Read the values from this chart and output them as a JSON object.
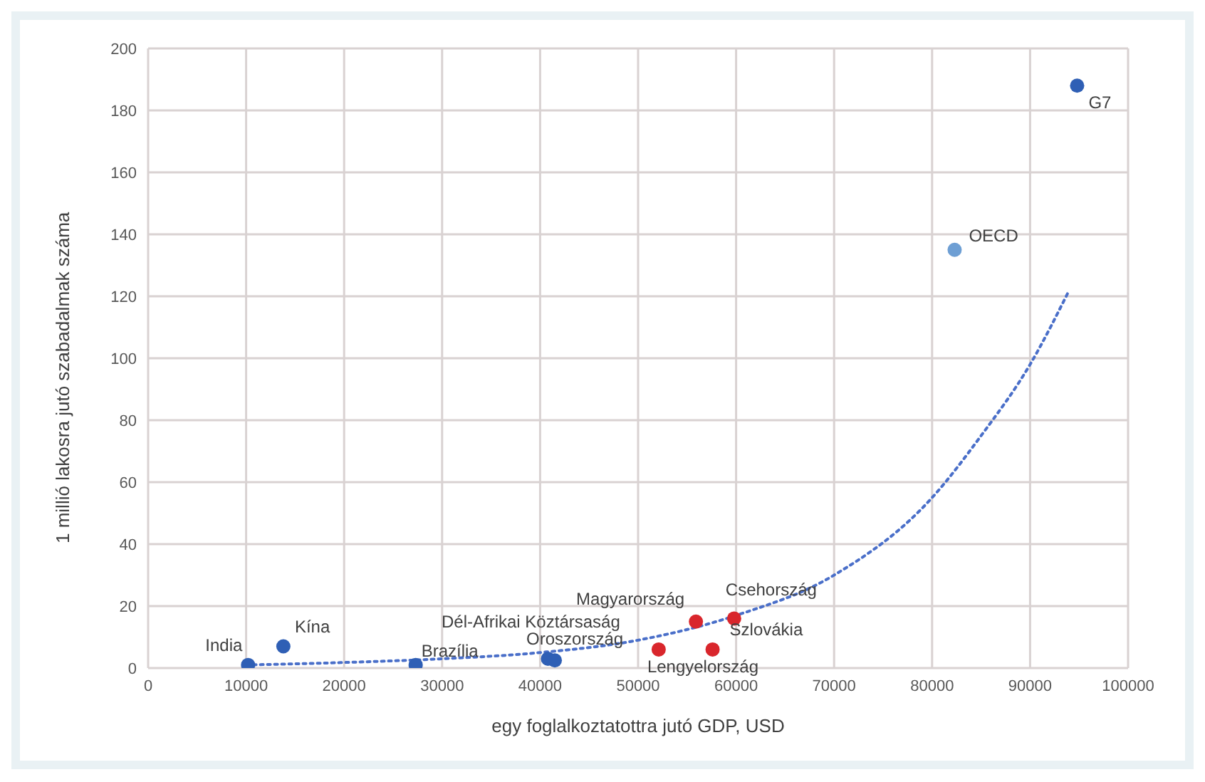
{
  "chart_data": {
    "type": "scatter",
    "xlabel": "egy foglalkoztatottra jutó GDP, USD",
    "ylabel": "1 millió lakosra jutó szabadalmak száma",
    "xlim": [
      0,
      100000
    ],
    "xticks": [
      0,
      10000,
      20000,
      30000,
      40000,
      50000,
      60000,
      70000,
      80000,
      90000,
      100000
    ],
    "ylim": [
      0,
      200
    ],
    "yticks": [
      0,
      20,
      40,
      60,
      80,
      100,
      120,
      140,
      160,
      180,
      200
    ],
    "grid": true,
    "legend": false,
    "marker": "circle",
    "series": [
      {
        "color": "#2f5fb5",
        "x": [
          10200,
          13800,
          27300,
          40800,
          41500,
          94800
        ],
        "values": [
          1,
          7,
          1,
          3,
          2.5,
          188
        ]
      },
      {
        "color": "#d9262c",
        "x": [
          52100,
          55900,
          57600,
          59800
        ],
        "values": [
          6,
          15,
          6,
          16
        ]
      },
      {
        "color": "#6e9fd4",
        "x": [
          82300
        ],
        "values": [
          135
        ]
      },
      {
        "type": "line",
        "color": "#4a6fc9",
        "line_style": "dotted",
        "marker": "none",
        "x": [
          10000,
          20000,
          30000,
          40000,
          50000,
          60000,
          70000,
          80000,
          85000,
          90000,
          94000
        ],
        "values": [
          1,
          1.8,
          3,
          5,
          9,
          17,
          30,
          55,
          75,
          98,
          122
        ]
      }
    ],
    "annotations": [
      {
        "text": "India",
        "x": 10200,
        "y": 1
      },
      {
        "text": "Kína",
        "x": 13800,
        "y": 7
      },
      {
        "text": "Brazília",
        "x": 27300,
        "y": 1
      },
      {
        "text": "Dél-Afrikai Köztársaság",
        "x": 40800,
        "y": 3
      },
      {
        "text": "Oroszország",
        "x": 41500,
        "y": 2.5
      },
      {
        "text": "Lengyelország",
        "x": 52100,
        "y": 6
      },
      {
        "text": "Magyarország",
        "x": 55900,
        "y": 15
      },
      {
        "text": "Szlovákia",
        "x": 57600,
        "y": 6
      },
      {
        "text": "Csehország",
        "x": 59800,
        "y": 16
      },
      {
        "text": "OECD",
        "x": 82300,
        "y": 135
      },
      {
        "text": "G7",
        "x": 94800,
        "y": 188
      }
    ]
  }
}
